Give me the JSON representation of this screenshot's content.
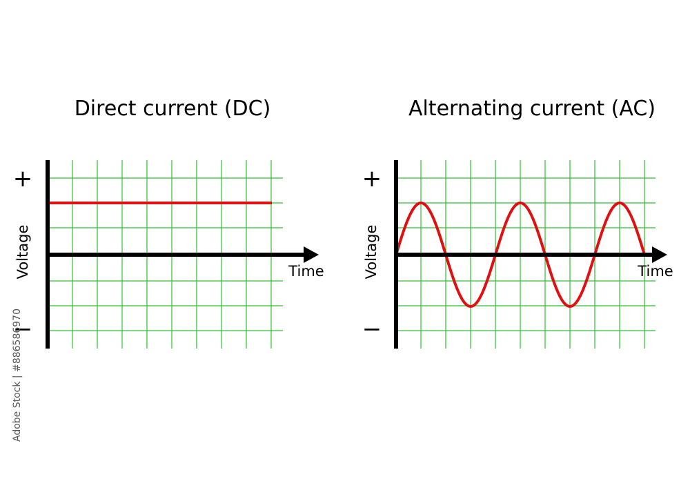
{
  "panels": [
    {
      "title": "Direct current (DC)",
      "plus_label": "+",
      "minus_label": "−",
      "y_label": "Voltage",
      "x_label": "Time"
    },
    {
      "title": "Alternating current (AC)",
      "plus_label": "+",
      "minus_label": "−",
      "y_label": "Voltage",
      "x_label": "Time"
    }
  ],
  "watermark": "Adobe Stock | #886586970"
}
